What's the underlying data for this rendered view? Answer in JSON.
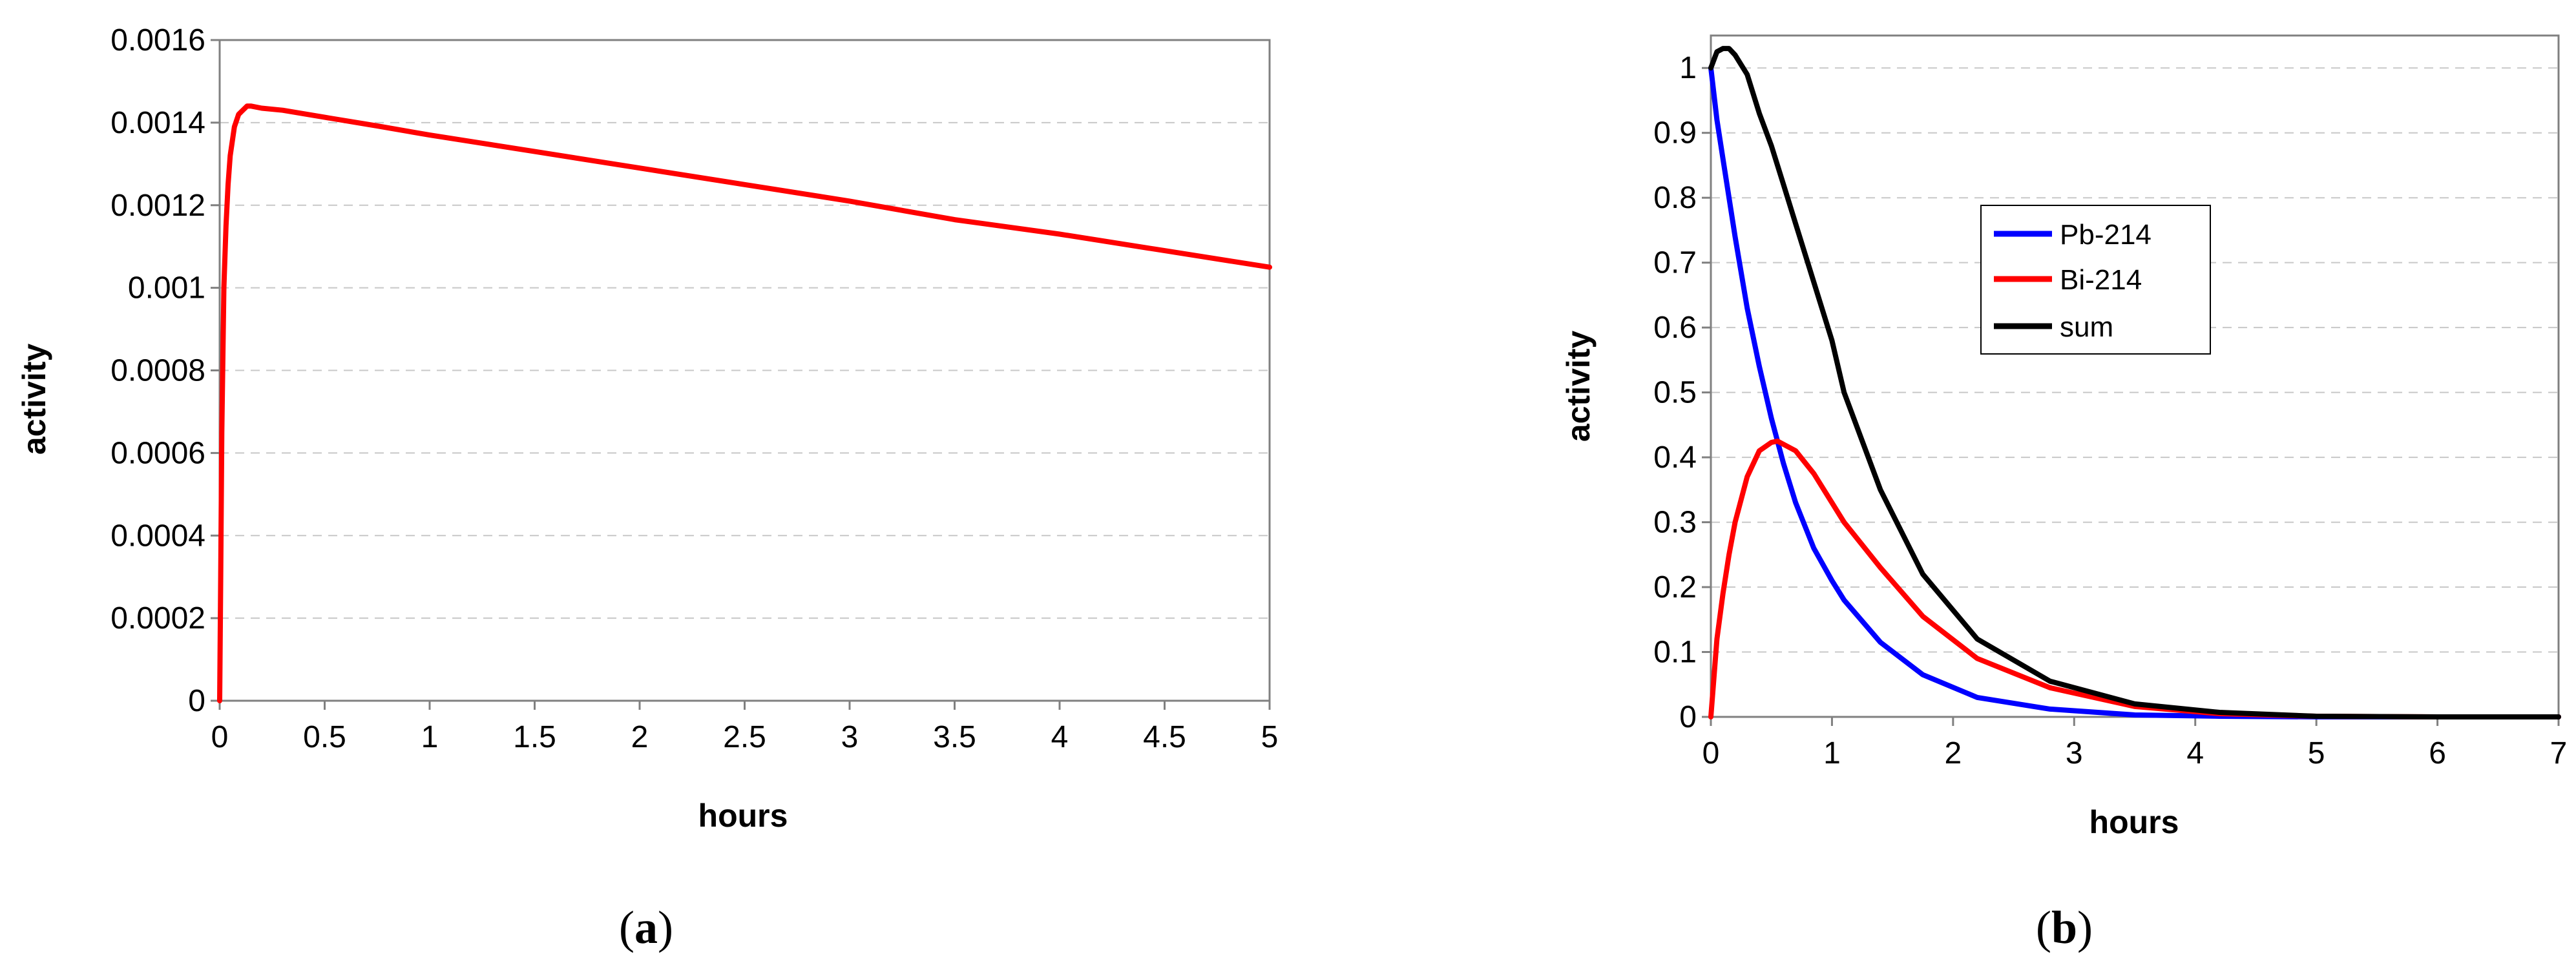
{
  "chart_data": [
    {
      "type": "line",
      "panel_label": "a",
      "xlabel": "hours",
      "ylabel": "activity",
      "xlim": [
        0,
        5
      ],
      "ylim": [
        0,
        0.0016
      ],
      "xticks": [
        "0",
        "0.5",
        "1",
        "1.5",
        "2",
        "2.5",
        "3",
        "3.5",
        "4",
        "4.5",
        "5"
      ],
      "yticks": [
        "0",
        "0.0002",
        "0.0004",
        "0.0006",
        "0.0008",
        "0.001",
        "0.0012",
        "0.0014",
        "0.0016"
      ],
      "grid": "horizontal dashed",
      "series": [
        {
          "color": "#ff0000",
          "x": [
            0,
            0.005,
            0.01,
            0.02,
            0.03,
            0.04,
            0.05,
            0.07,
            0.09,
            0.11,
            0.13,
            0.15,
            0.2,
            0.3,
            0.5,
            0.75,
            1,
            1.25,
            1.5,
            1.75,
            2,
            2.5,
            3,
            3.5,
            4,
            4.5,
            5
          ],
          "y": [
            0,
            0.0003,
            0.00065,
            0.001,
            0.00115,
            0.00125,
            0.00132,
            0.00139,
            0.00142,
            0.00143,
            0.00144,
            0.00144,
            0.001435,
            0.00143,
            0.001413,
            0.001392,
            0.00137,
            0.00135,
            0.00133,
            0.00131,
            0.00129,
            0.00125,
            0.00121,
            0.001165,
            0.00113,
            0.00109,
            0.00105
          ]
        }
      ]
    },
    {
      "type": "line",
      "panel_label": "b",
      "xlabel": "hours",
      "ylabel": "activity",
      "xlim": [
        0,
        7
      ],
      "ylim": [
        0,
        1.05
      ],
      "xticks": [
        "0",
        "1",
        "2",
        "3",
        "4",
        "5",
        "6",
        "7"
      ],
      "yticks": [
        "0",
        "0.1",
        "0.2",
        "0.3",
        "0.4",
        "0.5",
        "0.6",
        "0.7",
        "0.8",
        "0.9",
        "1"
      ],
      "grid": "horizontal dashed",
      "legend_position": "upper-middle",
      "series": [
        {
          "name": "Pb-214",
          "color": "#0000ff",
          "x": [
            0,
            0.05,
            0.1,
            0.2,
            0.3,
            0.4,
            0.5,
            0.6,
            0.7,
            0.85,
            1,
            1.1,
            1.4,
            1.75,
            2.2,
            2.8,
            3.5,
            4.2,
            5,
            6,
            7
          ],
          "y": [
            1,
            0.92,
            0.86,
            0.74,
            0.63,
            0.54,
            0.46,
            0.39,
            0.33,
            0.26,
            0.21,
            0.18,
            0.115,
            0.065,
            0.03,
            0.012,
            0.003,
            0.001,
            0,
            0,
            0
          ]
        },
        {
          "name": "Bi-214",
          "color": "#ff0000",
          "x": [
            0,
            0.05,
            0.1,
            0.15,
            0.2,
            0.3,
            0.4,
            0.5,
            0.55,
            0.7,
            0.85,
            1,
            1.1,
            1.4,
            1.75,
            2.2,
            2.8,
            3.5,
            4.2,
            5,
            6,
            7
          ],
          "y": [
            0,
            0.12,
            0.19,
            0.25,
            0.3,
            0.37,
            0.41,
            0.423,
            0.425,
            0.41,
            0.375,
            0.33,
            0.3,
            0.23,
            0.155,
            0.09,
            0.045,
            0.016,
            0.005,
            0.001,
            0,
            0
          ]
        },
        {
          "name": "sum",
          "color": "#000000",
          "x": [
            0,
            0.05,
            0.1,
            0.15,
            0.2,
            0.3,
            0.4,
            0.5,
            0.6,
            0.7,
            0.85,
            1,
            1.1,
            1.4,
            1.75,
            2.2,
            2.8,
            3.5,
            4.2,
            5,
            6,
            7
          ],
          "y": [
            1,
            1.025,
            1.03,
            1.03,
            1.02,
            0.99,
            0.93,
            0.88,
            0.82,
            0.76,
            0.67,
            0.58,
            0.5,
            0.35,
            0.22,
            0.12,
            0.055,
            0.02,
            0.007,
            0.001,
            0,
            0
          ]
        }
      ]
    }
  ]
}
